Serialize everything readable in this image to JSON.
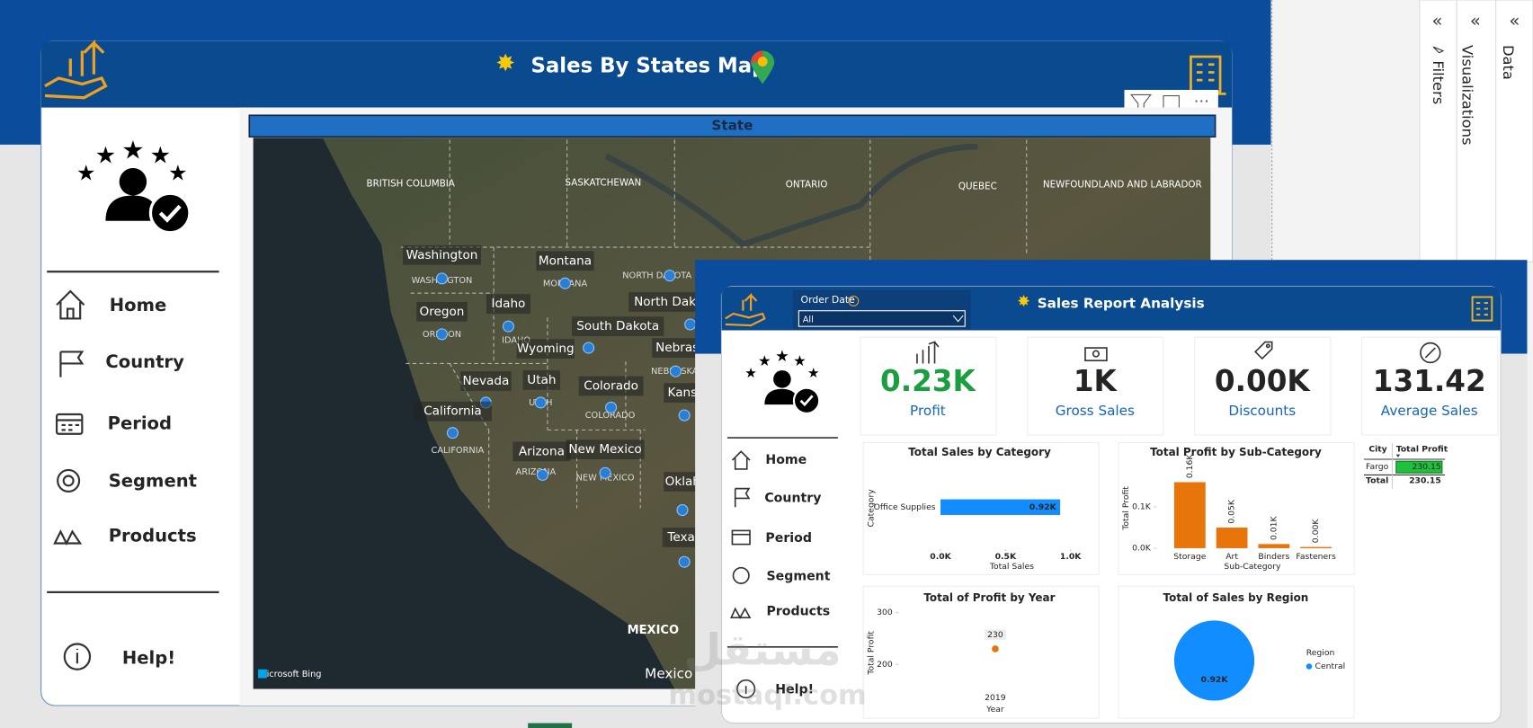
{
  "main_report": {
    "title": "Sales By States Map",
    "nav": [
      "Home",
      "Country",
      "Period",
      "Segment",
      "Products"
    ],
    "help": "Help!",
    "map": {
      "header": "State",
      "attribution": "Microsoft Bing",
      "region_labels": [
        "BRITISH COLUMBIA",
        "SASKATCHEWAN",
        "ONTARIO",
        "QUEBEC",
        "NEWFOUNDLAND AND LABRADOR",
        "MEXICO",
        "Mexico"
      ],
      "state_labels": [
        "Washington",
        "Montana",
        "Idaho",
        "Oregon",
        "North Dakota",
        "South Dakota",
        "Wyoming",
        "Nebraska",
        "Nevada",
        "Utah",
        "Colorado",
        "California",
        "Arizona",
        "New Mexico",
        "Kansas",
        "Oklahoma",
        "Texas"
      ],
      "base_labels": [
        "WASHINGTON",
        "MONTANA",
        "NORTH DAKOTA",
        "OREGON",
        "IDAHO",
        "NEBRASKA",
        "UTAH",
        "COLORADO",
        "CALIFORNIA",
        "ARIZONA",
        "NEW MEXICO"
      ]
    }
  },
  "side_panes": [
    "Filters",
    "Visualizations",
    "Data"
  ],
  "overlay_report": {
    "title": "Sales Report Analysis",
    "slicer": {
      "label": "Order Date",
      "value": "All"
    },
    "nav": [
      "Home",
      "Country",
      "Period",
      "Segment",
      "Products"
    ],
    "help": "Help!",
    "kpis": [
      {
        "value": "0.23K",
        "label": "Profit",
        "color": "#1a9e3f"
      },
      {
        "value": "1K",
        "label": "Gross Sales",
        "color": "#252423"
      },
      {
        "value": "0.00K",
        "label": "Discounts",
        "color": "#252423"
      },
      {
        "value": "131.42",
        "label": "Average Sales",
        "color": "#252423"
      }
    ],
    "charts": [
      {
        "type": "hbar",
        "title": "Total Sales by Category",
        "xlabel": "Total Sales",
        "ylabel": "Category",
        "categories": [
          "Office Supplies"
        ],
        "values": [
          920
        ],
        "value_labels": [
          "0.92K"
        ],
        "color": "#118dff",
        "xlim": [
          0,
          1000
        ],
        "xticks": [
          {
            "value": 0,
            "label": "0.0K"
          },
          {
            "value": 500,
            "label": "0.5K"
          },
          {
            "value": 1000,
            "label": "1.0K"
          }
        ]
      },
      {
        "type": "bar",
        "title": "Total Profit by Sub-Category",
        "xlabel": "Sub-Category",
        "ylabel": "Total Profit",
        "categories": [
          "Storage",
          "Art",
          "Binders",
          "Fasteners"
        ],
        "values": [
          160,
          50,
          10,
          3
        ],
        "value_labels": [
          "0.16K",
          "0.05K",
          "0.01K",
          "0.00K"
        ],
        "color": "#e8740c",
        "ylim": [
          0,
          180
        ],
        "yticks": [
          {
            "value": 0,
            "label": "0.0K"
          },
          {
            "value": 100,
            "label": "0.1K"
          }
        ]
      },
      {
        "type": "line",
        "title": "Total of Profit by Year",
        "xlabel": "Year",
        "ylabel": "Total Profit",
        "categories": [
          "2019"
        ],
        "values": [
          230.15
        ],
        "value_labels": [
          "230"
        ],
        "color": "#e8740c",
        "ylim": [
          180,
          310
        ],
        "yticks": [
          200,
          300
        ]
      },
      {
        "type": "pie",
        "title": "Total of Sales by Region",
        "legend_title": "Region",
        "categories": [
          "Central"
        ],
        "values": [
          920
        ],
        "value_labels": [
          "0.92K"
        ],
        "colors": [
          "#118dff"
        ]
      }
    ],
    "table": {
      "columns": [
        "City",
        "Total Profit"
      ],
      "rows": [
        [
          "Fargo",
          "230.15"
        ]
      ],
      "total": [
        "Total",
        "230.15"
      ]
    }
  },
  "watermark": {
    "arabic": "مستقل",
    "latin": "mostaql.com"
  }
}
